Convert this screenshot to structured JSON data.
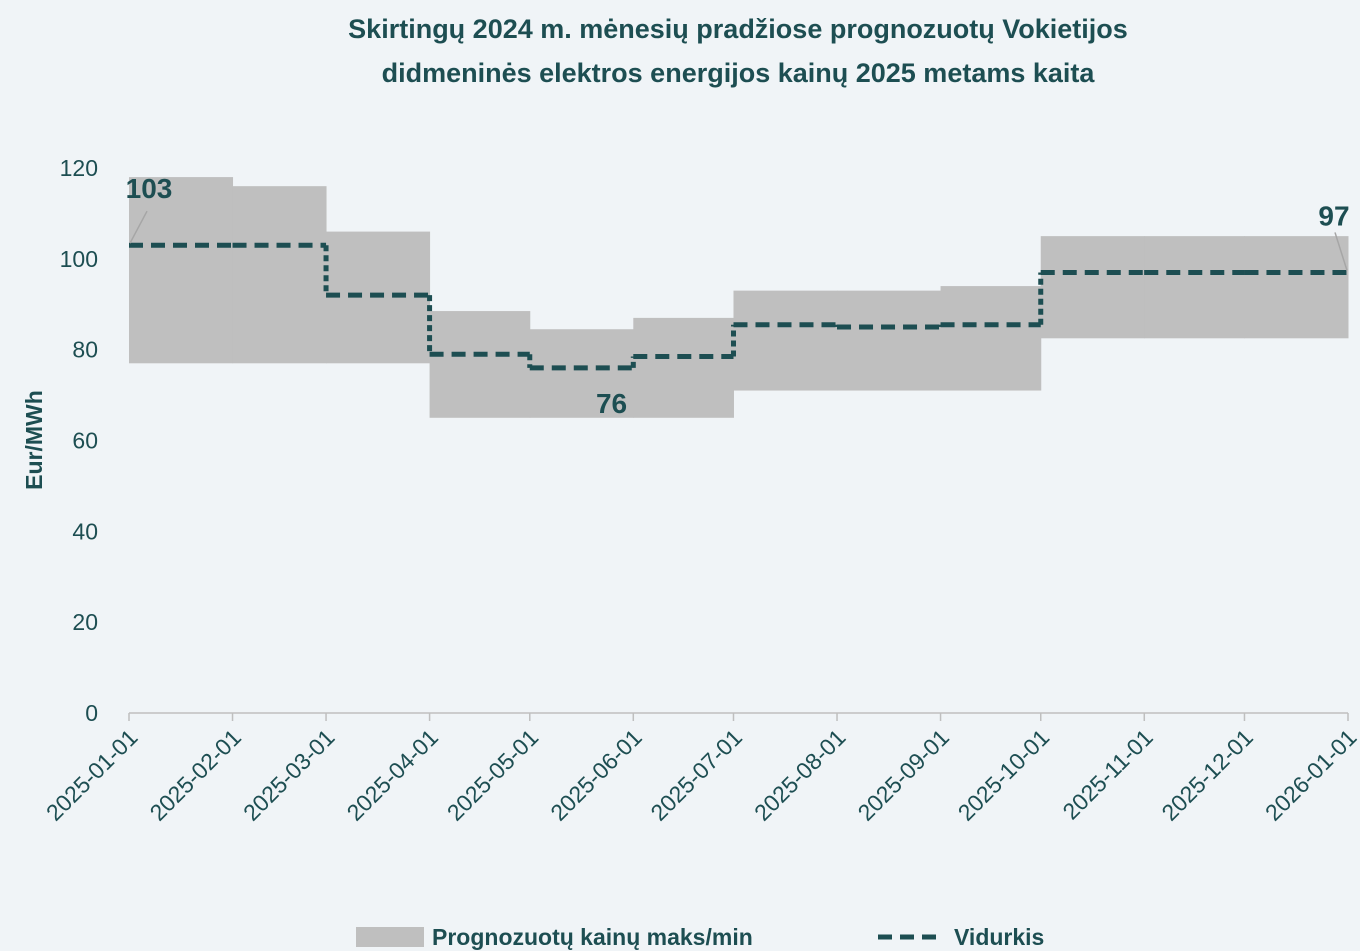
{
  "chart_data": {
    "type": "line",
    "title": "Skirtingų 2024 m. mėnesių pradžiose prognozuotų Vokietijos didmeninės elektros energijos kainų 2025 metams kaita",
    "y_label": "Eur/MWh",
    "x": [
      "2025-01-01",
      "2025-02-01",
      "2025-03-01",
      "2025-04-01",
      "2025-05-01",
      "2025-06-01",
      "2025-07-01",
      "2025-08-01",
      "2025-09-01",
      "2025-10-01",
      "2025-11-01",
      "2025-12-01"
    ],
    "xlim": [
      "2025-01-01",
      "2026-01-01"
    ],
    "xticks": [
      "2025-01-01",
      "2025-02-01",
      "2025-03-01",
      "2025-04-01",
      "2025-05-01",
      "2025-06-01",
      "2025-07-01",
      "2025-08-01",
      "2025-09-01",
      "2025-10-01",
      "2025-11-01",
      "2025-12-01",
      "2026-01-01"
    ],
    "ylim": [
      0,
      120
    ],
    "yticks": [
      0,
      20,
      40,
      60,
      80,
      100,
      120
    ],
    "series": [
      {
        "name": "Prognozuotų kainų maks/min",
        "color": "#bfbfbf",
        "max": [
          118,
          116,
          106,
          88.5,
          84.5,
          87,
          93,
          93,
          94,
          105,
          105,
          105
        ],
        "min": [
          77,
          77,
          77,
          65,
          65,
          65,
          71,
          71,
          71,
          82.5,
          82.5,
          82.5
        ]
      },
      {
        "name": "Vidurkis",
        "color": "#1d4e52",
        "dash": true,
        "values": [
          103,
          103,
          92,
          79,
          76,
          78.5,
          85.5,
          85,
          85.5,
          97,
          97,
          97
        ],
        "value_labels": [
          "103",
          null,
          null,
          null,
          "76",
          null,
          null,
          null,
          null,
          null,
          null,
          "97"
        ]
      }
    ]
  }
}
